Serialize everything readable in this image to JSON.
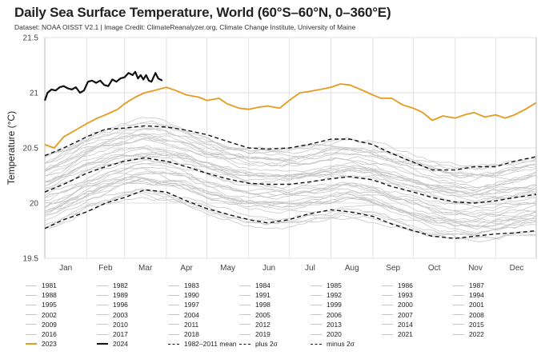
{
  "header": {
    "title": "Daily Sea Surface Temperature, World (60°S–60°N, 0–360°E)",
    "subtitle": "Dataset: NOAA OISST V2.1 | Image Credit: ClimateReanalyzer.org, Climate Change Institute, University of Maine"
  },
  "colors": {
    "year_lines": "#c8c8c8",
    "y2023": "#e69a1e",
    "y2024": "#111111",
    "stats": "#111111",
    "grid": "#e2e2e2"
  },
  "chart_data": {
    "type": "line",
    "title": "Daily Sea Surface Temperature, World (60°S–60°N, 0–360°E)",
    "ylabel": "Temperature (°C)",
    "xlabel": "",
    "ylim": [
      19.5,
      21.5
    ],
    "yticks": [
      "19.5",
      "20",
      "20.5",
      "21",
      "21.5"
    ],
    "xticks": [
      "Jan",
      "Feb",
      "Mar",
      "Apr",
      "May",
      "Jun",
      "Jul",
      "Aug",
      "Sep",
      "Oct",
      "Nov",
      "Dec"
    ],
    "grid": true,
    "x_unit": "day of year",
    "series": [
      {
        "name": "1982-2011 mean",
        "style": "dashed",
        "points": [
          [
            1,
            20.1
          ],
          [
            15,
            20.17
          ],
          [
            32,
            20.27
          ],
          [
            46,
            20.33
          ],
          [
            60,
            20.38
          ],
          [
            75,
            20.41
          ],
          [
            91,
            20.38
          ],
          [
            106,
            20.33
          ],
          [
            121,
            20.27
          ],
          [
            136,
            20.22
          ],
          [
            152,
            20.18
          ],
          [
            166,
            20.17
          ],
          [
            182,
            20.17
          ],
          [
            196,
            20.19
          ],
          [
            213,
            20.22
          ],
          [
            227,
            20.24
          ],
          [
            244,
            20.21
          ],
          [
            258,
            20.15
          ],
          [
            274,
            20.1
          ],
          [
            288,
            20.05
          ],
          [
            305,
            20.01
          ],
          [
            319,
            20.0
          ],
          [
            335,
            20.02
          ],
          [
            349,
            20.05
          ],
          [
            365,
            20.08
          ]
        ]
      },
      {
        "name": "plus 2σ",
        "style": "dashed",
        "points": [
          [
            1,
            20.43
          ],
          [
            15,
            20.5
          ],
          [
            32,
            20.6
          ],
          [
            46,
            20.67
          ],
          [
            60,
            20.68
          ],
          [
            75,
            20.7
          ],
          [
            91,
            20.69
          ],
          [
            106,
            20.66
          ],
          [
            121,
            20.62
          ],
          [
            136,
            20.56
          ],
          [
            152,
            20.5
          ],
          [
            166,
            20.49
          ],
          [
            182,
            20.5
          ],
          [
            196,
            20.53
          ],
          [
            213,
            20.58
          ],
          [
            227,
            20.58
          ],
          [
            244,
            20.53
          ],
          [
            258,
            20.45
          ],
          [
            274,
            20.37
          ],
          [
            288,
            20.3
          ],
          [
            305,
            20.3
          ],
          [
            319,
            20.33
          ],
          [
            335,
            20.33
          ],
          [
            349,
            20.38
          ],
          [
            365,
            20.42
          ]
        ]
      },
      {
        "name": "minus 2σ",
        "style": "dashed",
        "points": [
          [
            1,
            19.77
          ],
          [
            15,
            19.85
          ],
          [
            32,
            19.92
          ],
          [
            46,
            20.0
          ],
          [
            60,
            20.05
          ],
          [
            75,
            20.12
          ],
          [
            91,
            20.1
          ],
          [
            106,
            20.02
          ],
          [
            121,
            19.95
          ],
          [
            136,
            19.9
          ],
          [
            152,
            19.85
          ],
          [
            166,
            19.82
          ],
          [
            182,
            19.85
          ],
          [
            196,
            19.9
          ],
          [
            213,
            19.94
          ],
          [
            227,
            19.92
          ],
          [
            244,
            19.88
          ],
          [
            258,
            19.81
          ],
          [
            274,
            19.75
          ],
          [
            288,
            19.7
          ],
          [
            305,
            19.68
          ],
          [
            319,
            19.7
          ],
          [
            335,
            19.72
          ],
          [
            349,
            19.73
          ],
          [
            365,
            19.75
          ]
        ]
      },
      {
        "name": "2023",
        "style": "solid",
        "points": [
          [
            1,
            20.53
          ],
          [
            8,
            20.5
          ],
          [
            15,
            20.6
          ],
          [
            25,
            20.67
          ],
          [
            32,
            20.72
          ],
          [
            40,
            20.77
          ],
          [
            46,
            20.8
          ],
          [
            55,
            20.85
          ],
          [
            60,
            20.9
          ],
          [
            68,
            20.96
          ],
          [
            75,
            21.0
          ],
          [
            82,
            21.02
          ],
          [
            91,
            21.05
          ],
          [
            98,
            21.02
          ],
          [
            106,
            20.98
          ],
          [
            115,
            20.96
          ],
          [
            121,
            20.93
          ],
          [
            130,
            20.95
          ],
          [
            136,
            20.9
          ],
          [
            145,
            20.86
          ],
          [
            152,
            20.85
          ],
          [
            160,
            20.87
          ],
          [
            166,
            20.88
          ],
          [
            175,
            20.86
          ],
          [
            182,
            20.93
          ],
          [
            190,
            21.0
          ],
          [
            196,
            21.01
          ],
          [
            205,
            21.03
          ],
          [
            213,
            21.05
          ],
          [
            220,
            21.08
          ],
          [
            227,
            21.07
          ],
          [
            235,
            21.03
          ],
          [
            244,
            20.98
          ],
          [
            250,
            20.95
          ],
          [
            258,
            20.95
          ],
          [
            266,
            20.89
          ],
          [
            274,
            20.86
          ],
          [
            281,
            20.82
          ],
          [
            288,
            20.75
          ],
          [
            296,
            20.79
          ],
          [
            305,
            20.77
          ],
          [
            312,
            20.8
          ],
          [
            319,
            20.82
          ],
          [
            327,
            20.78
          ],
          [
            335,
            20.8
          ],
          [
            342,
            20.77
          ],
          [
            349,
            20.8
          ],
          [
            357,
            20.85
          ],
          [
            365,
            20.91
          ]
        ]
      },
      {
        "name": "2024",
        "style": "solid",
        "points": [
          [
            1,
            20.93
          ],
          [
            3,
            21.0
          ],
          [
            6,
            21.03
          ],
          [
            9,
            21.02
          ],
          [
            12,
            21.05
          ],
          [
            15,
            21.06
          ],
          [
            18,
            21.04
          ],
          [
            21,
            21.03
          ],
          [
            24,
            21.05
          ],
          [
            27,
            21.0
          ],
          [
            30,
            21.02
          ],
          [
            33,
            21.1
          ],
          [
            36,
            21.11
          ],
          [
            39,
            21.09
          ],
          [
            42,
            21.11
          ],
          [
            45,
            21.07
          ],
          [
            48,
            21.06
          ],
          [
            51,
            21.12
          ],
          [
            54,
            21.1
          ],
          [
            57,
            21.13
          ],
          [
            60,
            21.14
          ],
          [
            63,
            21.18
          ],
          [
            66,
            21.16
          ],
          [
            68,
            21.19
          ],
          [
            70,
            21.13
          ],
          [
            72,
            21.16
          ],
          [
            74,
            21.12
          ],
          [
            76,
            21.16
          ],
          [
            78,
            21.11
          ],
          [
            80,
            21.1
          ],
          [
            83,
            21.18
          ],
          [
            85,
            21.13
          ],
          [
            88,
            21.11
          ]
        ]
      }
    ]
  },
  "legend": {
    "items": [
      "1981",
      "1982",
      "1983",
      "1984",
      "1985",
      "1986",
      "1987",
      "1988",
      "1989",
      "1990",
      "1991",
      "1992",
      "1993",
      "1994",
      "1995",
      "1996",
      "1997",
      "1998",
      "1999",
      "2000",
      "2001",
      "2002",
      "2003",
      "2004",
      "2005",
      "2006",
      "2007",
      "2008",
      "2009",
      "2010",
      "2011",
      "2012",
      "2013",
      "2014",
      "2015",
      "2016",
      "2017",
      "2018",
      "2019",
      "2020",
      "2021",
      "2022",
      "2023",
      "2024",
      "1982–2011 mean",
      "plus 2σ",
      "minus 2σ"
    ]
  }
}
